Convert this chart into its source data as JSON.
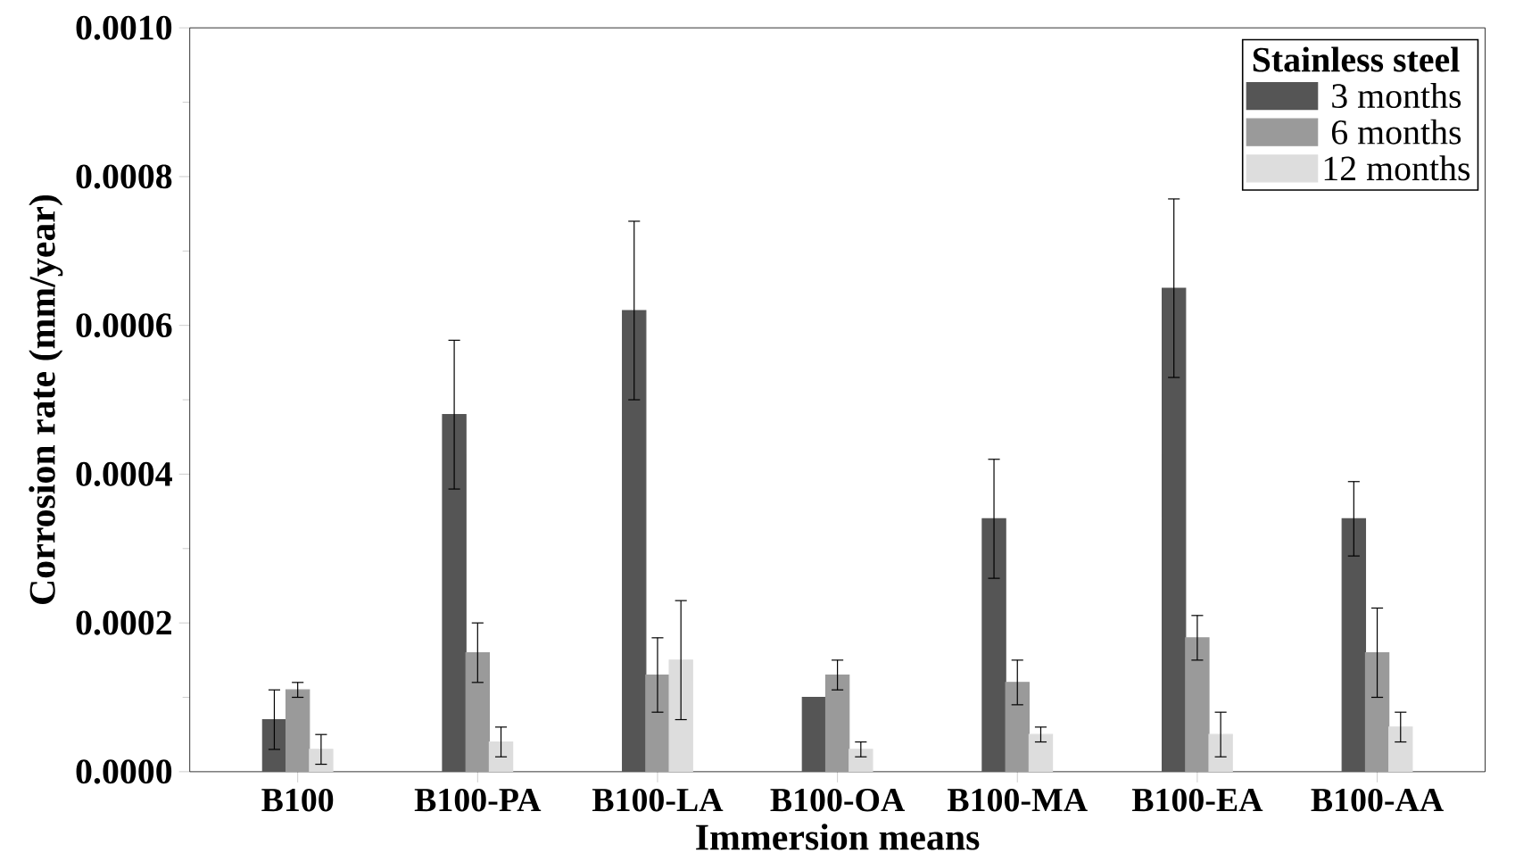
{
  "chart_data": {
    "type": "bar",
    "xlabel": "Immersion means",
    "ylabel": "Corrosion rate (mm/year)",
    "legend_title": "Stainless steel",
    "categories": [
      "B100",
      "B100-PA",
      "B100-LA",
      "B100-OA",
      "B100-MA",
      "B100-EA",
      "B100-AA"
    ],
    "series": [
      {
        "name": "3 months",
        "color": "#555555",
        "values": [
          7e-05,
          0.00048,
          0.00062,
          0.0001,
          0.00034,
          0.00065,
          0.00034
        ],
        "errors": [
          4e-05,
          0.0001,
          0.00012,
          null,
          8e-05,
          0.00012,
          5e-05
        ]
      },
      {
        "name": "6 months",
        "color": "#9a9a9a",
        "values": [
          0.00011,
          0.00016,
          0.00013,
          0.00013,
          0.00012,
          0.00018,
          0.00016
        ],
        "errors": [
          1e-05,
          4e-05,
          5e-05,
          2e-05,
          3e-05,
          3e-05,
          6e-05
        ]
      },
      {
        "name": "12 months",
        "color": "#dddddd",
        "values": [
          3e-05,
          4e-05,
          0.00015,
          3e-05,
          5e-05,
          5e-05,
          6e-05
        ],
        "errors": [
          2e-05,
          2e-05,
          8e-05,
          1e-05,
          1e-05,
          3e-05,
          2e-05
        ]
      }
    ],
    "ylim": [
      0,
      0.001
    ],
    "yticks": [
      {
        "value": 0,
        "label": "0.0000"
      },
      {
        "value": 0.0002,
        "label": "0.0002"
      },
      {
        "value": 0.0004,
        "label": "0.0004"
      },
      {
        "value": 0.0006,
        "label": "0.0006"
      },
      {
        "value": 0.0008,
        "label": "0.0008"
      },
      {
        "value": 0.001,
        "label": "0.0010"
      }
    ],
    "legend": "top right",
    "grid": false
  }
}
